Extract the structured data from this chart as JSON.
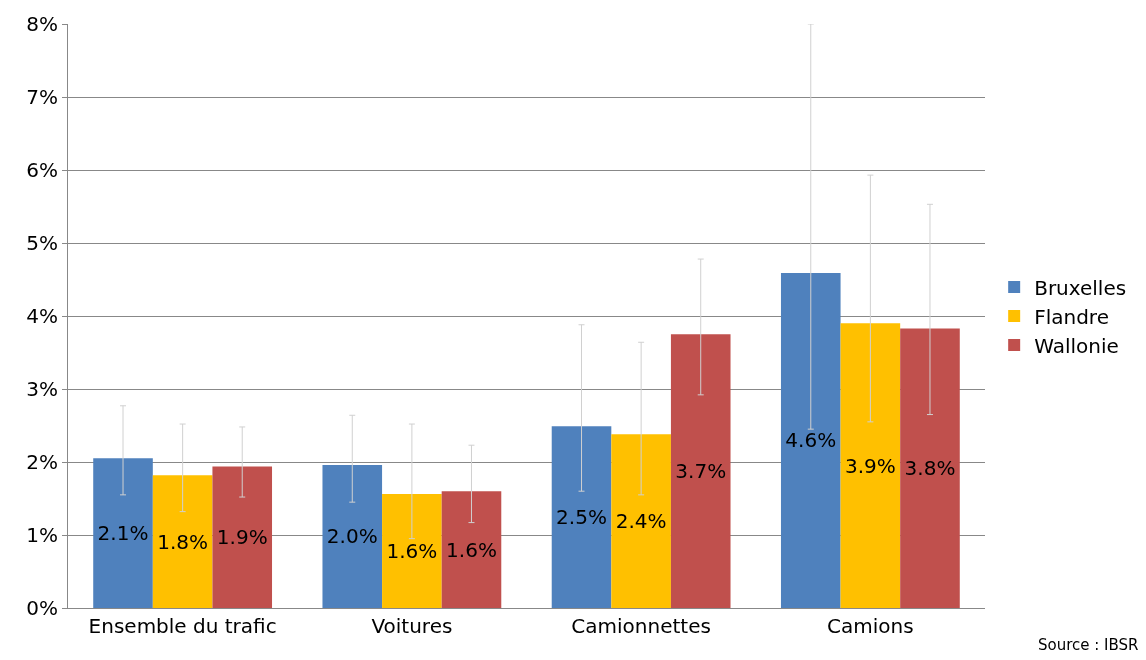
{
  "chart_data": {
    "type": "bar",
    "categories": [
      "Ensemble du trafic",
      "Voitures",
      "Camionnettes",
      "Camions"
    ],
    "series": [
      {
        "name": "Bruxelles",
        "color": "#4f81bd",
        "values": [
          2.05,
          1.96,
          2.49,
          4.59
        ],
        "value_labels": [
          "2.1%",
          "2.0%",
          "2.5%",
          "4.6%"
        ],
        "errors": [
          [
            1.55,
            2.77
          ],
          [
            1.45,
            2.64
          ],
          [
            1.6,
            3.88
          ],
          [
            2.45,
            8.0
          ]
        ]
      },
      {
        "name": "Flandre",
        "color": "#ffc000",
        "values": [
          1.82,
          1.56,
          2.38,
          3.9
        ],
        "value_labels": [
          "1.8%",
          "1.6%",
          "2.4%",
          "3.9%"
        ],
        "errors": [
          [
            1.32,
            2.52
          ],
          [
            0.95,
            2.52
          ],
          [
            1.55,
            3.64
          ],
          [
            2.55,
            5.93
          ]
        ]
      },
      {
        "name": "Wallonie",
        "color": "#c0504d",
        "values": [
          1.94,
          1.6,
          3.75,
          3.83
        ],
        "value_labels": [
          "1.9%",
          "1.6%",
          "3.7%",
          "3.8%"
        ],
        "errors": [
          [
            1.52,
            2.48
          ],
          [
            1.17,
            2.23
          ],
          [
            2.92,
            4.78
          ],
          [
            2.65,
            5.53
          ]
        ]
      }
    ],
    "ylim": [
      0,
      8
    ],
    "yticks": [
      {
        "value": 0,
        "label": "0%"
      },
      {
        "value": 1,
        "label": "1%"
      },
      {
        "value": 2,
        "label": "2%"
      },
      {
        "value": 3,
        "label": "3%"
      },
      {
        "value": 4,
        "label": "4%"
      },
      {
        "value": 5,
        "label": "5%"
      },
      {
        "value": 6,
        "label": "6%"
      },
      {
        "value": 7,
        "label": "7%"
      },
      {
        "value": 8,
        "label": "8%"
      }
    ],
    "grid": "y",
    "legend": "right",
    "annotations": [
      "Source : IBSR"
    ]
  }
}
